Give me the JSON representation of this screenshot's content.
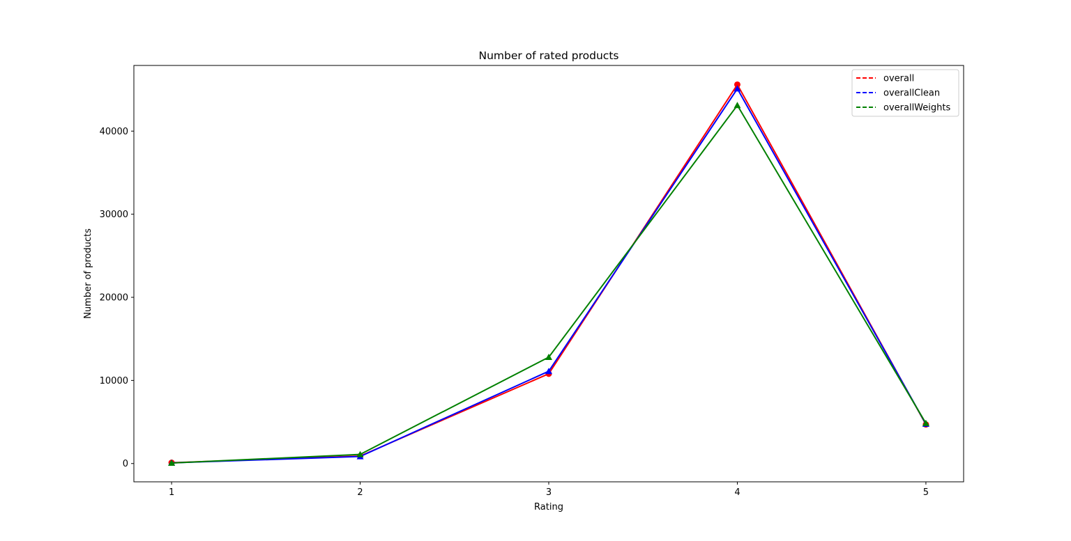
{
  "chart_data": {
    "type": "line",
    "title": "Number of rated products",
    "xlabel": "Rating",
    "ylabel": "Number of products",
    "x": [
      1,
      2,
      3,
      4,
      5
    ],
    "xticks": [
      1,
      2,
      3,
      4,
      5
    ],
    "yticks": [
      0,
      10000,
      20000,
      30000,
      40000
    ],
    "xlim": [
      0.8,
      5.2
    ],
    "ylim": [
      -2200,
      47900
    ],
    "grid": false,
    "legend_position": "top-right",
    "series": [
      {
        "name": "overall",
        "values": [
          100,
          900,
          10800,
          45600,
          4700
        ],
        "color": "#ff0000",
        "marker": "circle"
      },
      {
        "name": "overallClean",
        "values": [
          80,
          850,
          11100,
          45100,
          4750
        ],
        "color": "#0000ff",
        "marker": "triangle"
      },
      {
        "name": "overallWeights",
        "values": [
          60,
          1100,
          12800,
          43100,
          4850
        ],
        "color": "#008000",
        "marker": "triangle"
      }
    ]
  }
}
